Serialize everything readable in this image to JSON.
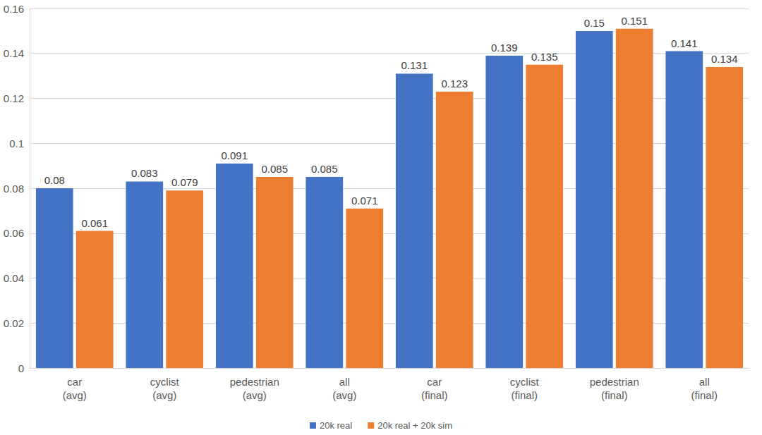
{
  "chart_data": {
    "type": "bar",
    "categories": [
      "car\n(avg)",
      "cyclist\n(avg)",
      "pedestrian\n(avg)",
      "all\n(avg)",
      "car\n(final)",
      "cyclist\n(final)",
      "pedestrian\n(final)",
      "all\n(final)"
    ],
    "series": [
      {
        "name": "20k real",
        "color": "#4472c4",
        "values": [
          0.08,
          0.083,
          0.091,
          0.085,
          0.131,
          0.139,
          0.15,
          0.141
        ]
      },
      {
        "name": "20k real + 20k sim",
        "color": "#ed7d31",
        "values": [
          0.061,
          0.079,
          0.085,
          0.071,
          0.123,
          0.135,
          0.151,
          0.134
        ]
      }
    ],
    "ylim": [
      0,
      0.16
    ],
    "yticks": [
      0,
      0.02,
      0.04,
      0.06,
      0.08,
      0.1,
      0.12,
      0.14,
      0.16
    ],
    "grid": true,
    "legend": "bottom",
    "data_labels": true
  }
}
